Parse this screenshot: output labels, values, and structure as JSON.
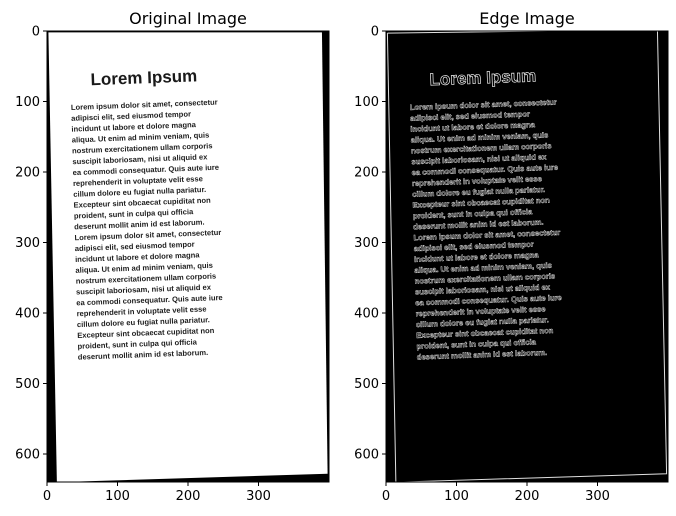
{
  "chart_data": [
    {
      "type": "image",
      "title": "Original Image",
      "xlim": [
        0,
        400
      ],
      "ylim": [
        640,
        0
      ],
      "xticks": [
        0,
        100,
        200,
        300
      ],
      "yticks": [
        0,
        100,
        200,
        300,
        400,
        500,
        600
      ],
      "document_title": "Lorem Ipsum",
      "document_lines": [
        "Lorem ipsum dolor sit amet, consectetur",
        "adipisci elit, sed eiusmod tempor",
        "incidunt ut labore et dolore magna",
        "aliqua. Ut enim ad minim veniam, quis",
        "nostrum exercitationem ullam corporis",
        "suscipit laboriosam, nisi ut aliquid ex",
        "ea commodi consequatur. Quis aute iure",
        "reprehenderit in voluptate velit esse",
        "cillum dolore eu fugiat nulla pariatur.",
        "Excepteur sint obcaecat cupiditat non",
        "proident, sunt in culpa qui officia",
        "deserunt mollit anim id est laborum.",
        "Lorem ipsum dolor sit amet, consectetur",
        "adipisci elit, sed eiusmod tempor",
        "incidunt ut labore et dolore magna",
        "aliqua. Ut enim ad minim veniam, quis",
        "nostrum exercitationem ullam corporis",
        "suscipit laboriosam, nisi ut aliquid ex",
        "ea commodi consequatur. Quis aute iure",
        "reprehenderit in voluptate velit esse",
        "cillum dolore eu fugiat nulla pariatur.",
        "Excepteur sint obcaecat cupiditat non",
        "proident, sunt in culpa qui officia",
        "deserunt mollit anim id est laborum."
      ]
    },
    {
      "type": "image",
      "title": "Edge Image",
      "xlim": [
        0,
        400
      ],
      "ylim": [
        640,
        0
      ],
      "xticks": [
        0,
        100,
        200,
        300
      ],
      "yticks": [
        0,
        100,
        200,
        300,
        400,
        500,
        600
      ]
    }
  ]
}
